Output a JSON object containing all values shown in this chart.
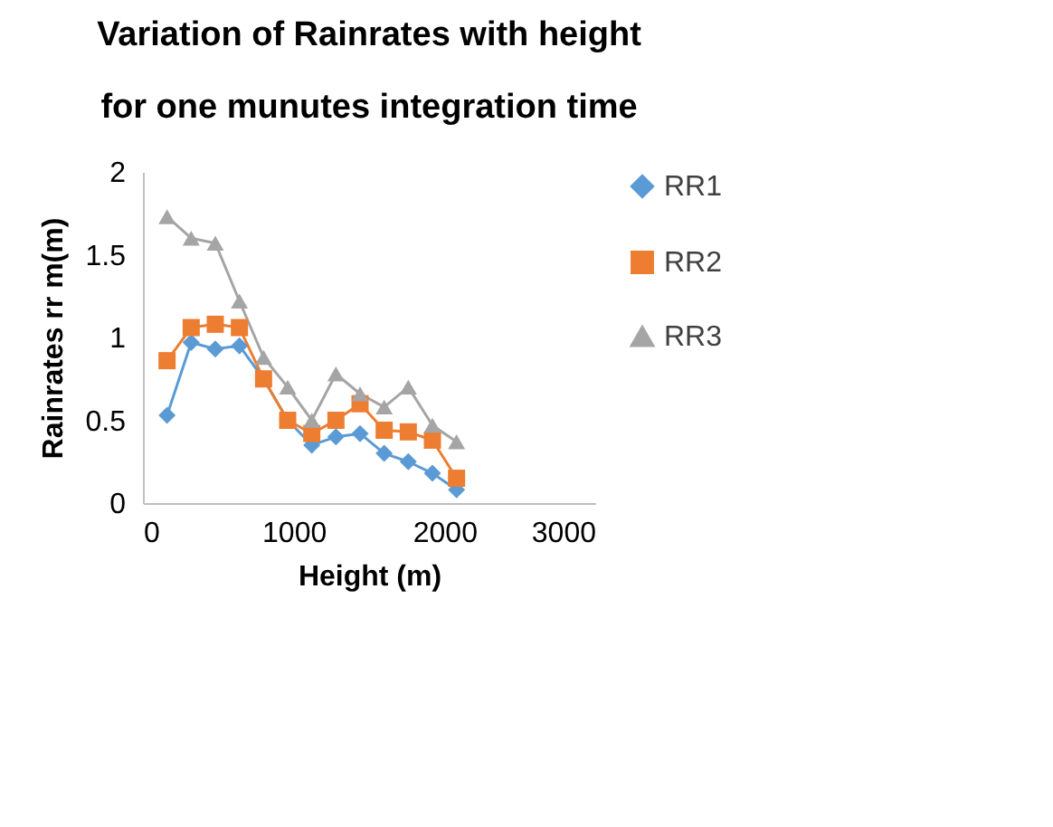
{
  "chart_data": {
    "type": "line",
    "title": [
      "Variation of Rainrates with height",
      "for one munutes integration time"
    ],
    "xlabel": "Height (m)",
    "ylabel": "Rainrates rr m(m)",
    "x": [
      160,
      320,
      480,
      640,
      800,
      960,
      1120,
      1280,
      1440,
      1600,
      1760,
      1920,
      2080
    ],
    "series": [
      {
        "name": "RR1",
        "color": "#5b9bd5",
        "marker": "diamond",
        "values": [
          0.53,
          0.97,
          0.93,
          0.95,
          0.75,
          0.5,
          0.35,
          0.4,
          0.42,
          0.3,
          0.25,
          0.18,
          0.08
        ]
      },
      {
        "name": "RR2",
        "color": "#ed7d31",
        "marker": "square",
        "values": [
          0.86,
          1.06,
          1.08,
          1.06,
          0.75,
          0.5,
          0.42,
          0.5,
          0.6,
          0.44,
          0.43,
          0.38,
          0.15
        ]
      },
      {
        "name": "RR3",
        "color": "#a5a5a5",
        "marker": "triangle",
        "values": [
          1.73,
          1.6,
          1.57,
          1.22,
          0.88,
          0.7,
          0.5,
          0.78,
          0.66,
          0.58,
          0.7,
          0.47,
          0.37
        ]
      }
    ],
    "xlim": [
      0,
      3000
    ],
    "xticks": [
      0,
      1000,
      2000,
      3000
    ],
    "ylim": [
      0,
      2
    ],
    "yticks": [
      0,
      0.5,
      1,
      1.5,
      2
    ],
    "legend": "right",
    "grid": false
  }
}
